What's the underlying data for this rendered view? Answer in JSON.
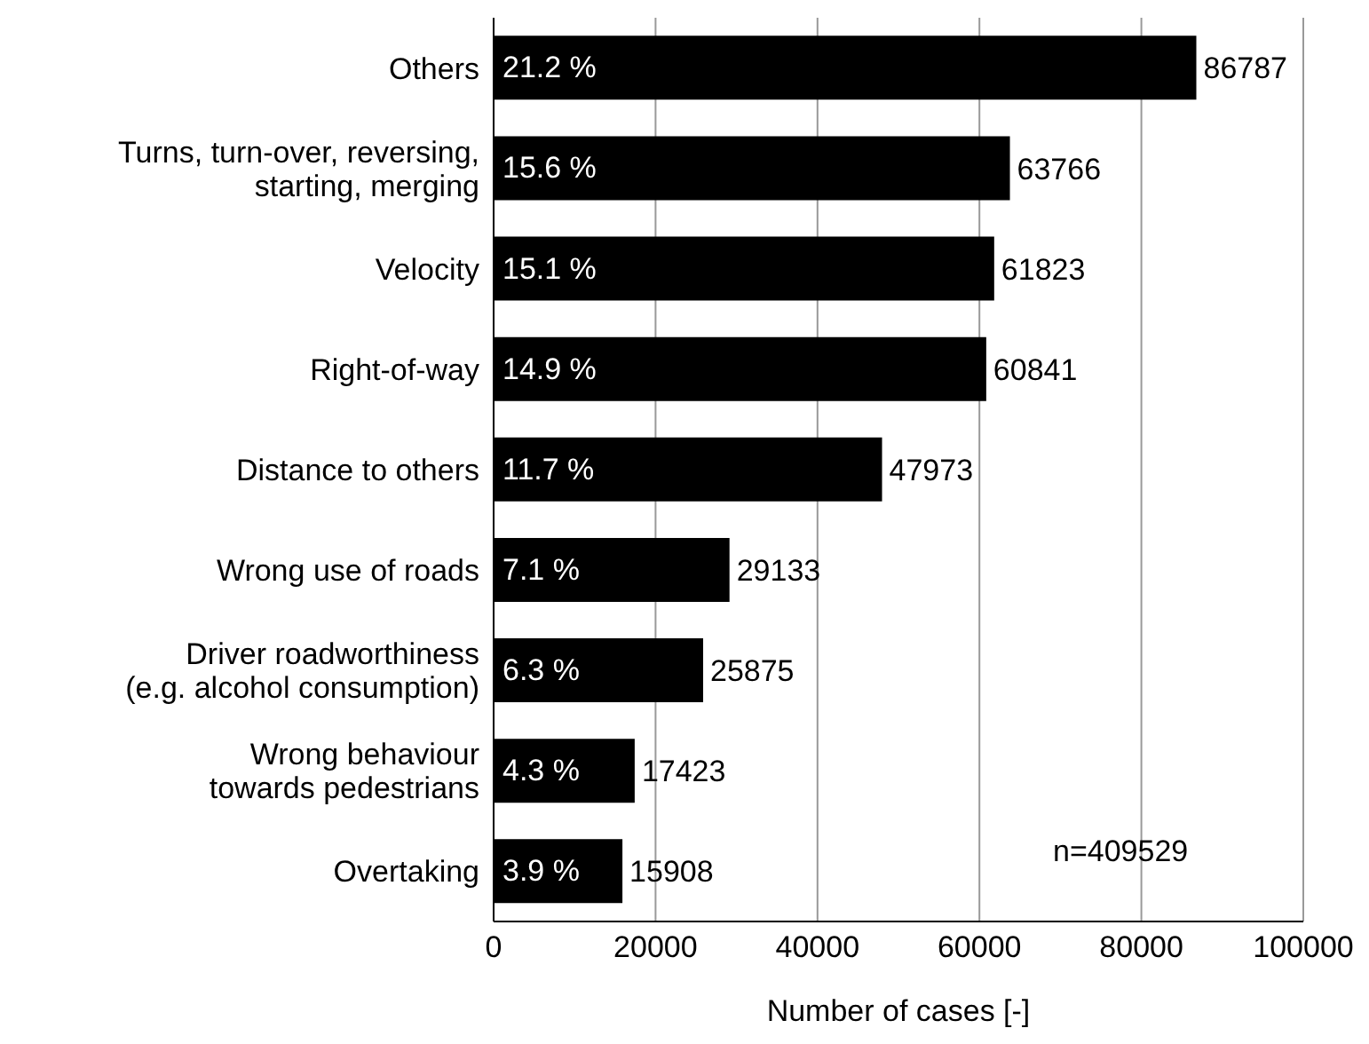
{
  "chart_data": {
    "type": "bar",
    "orientation": "horizontal",
    "xlabel": "Number of cases [-]",
    "categories": [
      "Others",
      "Turns, turn-over, reversing,\nstarting, merging",
      "Velocity",
      "Right-of-way",
      "Distance to others",
      "Wrong use of roads",
      "Driver roadworthiness\n(e.g. alcohol consumption)",
      "Wrong behaviour\ntowards pedestrians",
      "Overtaking"
    ],
    "values": [
      86787,
      63766,
      61823,
      60841,
      47973,
      29133,
      25875,
      17423,
      15908
    ],
    "data_labels": true,
    "color": "#000000",
    "xlim": [
      0,
      100000
    ],
    "xticks": [
      0,
      20000,
      40000,
      60000,
      80000,
      100000
    ],
    "grid": "x",
    "annotations": [
      "21.2 %",
      "15.6 %",
      "15.1 %",
      "14.9 %",
      "11.7 %",
      "7.1 %",
      "6.3 %",
      "4.3 %",
      "3.9 %",
      "n=409529"
    ]
  }
}
